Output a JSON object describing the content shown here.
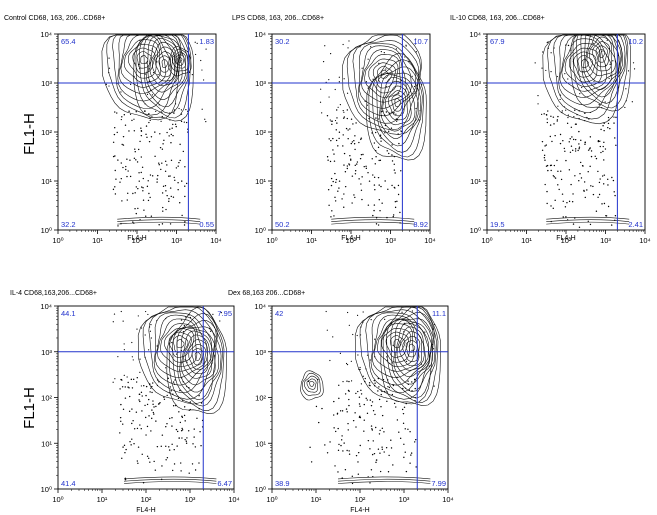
{
  "figure": {
    "ylabel": "FL1-H"
  },
  "chart_data": [
    {
      "type": "scatter",
      "title": "Control CD68, 163, 206...CD68+",
      "xlabel": "FL4-H",
      "ylabel": "FL1-H",
      "xscale": "log",
      "yscale": "log",
      "xlim": [
        1,
        10000
      ],
      "ylim": [
        1,
        10000
      ],
      "x_ticks": [
        "10⁰",
        "10¹",
        "10²",
        "10³",
        "10⁴"
      ],
      "y_ticks": [
        "10⁰",
        "10¹",
        "10²",
        "10³",
        "10⁴"
      ],
      "gate": {
        "x": 2000,
        "y": 1000
      },
      "quadrants": {
        "upper_left": "65.4",
        "upper_right": "1.83",
        "lower_left": "32.2",
        "lower_right": "0.55"
      },
      "density_peaks": [
        [
          150,
          3000
        ],
        [
          500,
          2500
        ],
        [
          1200,
          3000
        ]
      ]
    },
    {
      "type": "scatter",
      "title": "LPS CD68, 163, 206...CD68+",
      "xlabel": "FL4-H",
      "ylabel": "",
      "xscale": "log",
      "yscale": "log",
      "xlim": [
        1,
        10000
      ],
      "ylim": [
        1,
        10000
      ],
      "x_ticks": [
        "10⁰",
        "10¹",
        "10²",
        "10³",
        "10⁴"
      ],
      "y_ticks": [
        "10⁰",
        "10¹",
        "10²",
        "10³",
        "10⁴"
      ],
      "gate": {
        "x": 2000,
        "y": 1000
      },
      "quadrants": {
        "upper_left": "30.2",
        "upper_right": "10.7",
        "lower_left": "50.2",
        "lower_right": "8.92"
      },
      "density_peaks": [
        [
          700,
          1500
        ],
        [
          1500,
          400
        ]
      ]
    },
    {
      "type": "scatter",
      "title": "IL-10 CD68, 163, 206...CD68+",
      "xlabel": "FL4-H",
      "ylabel": "",
      "xscale": "log",
      "yscale": "log",
      "xlim": [
        1,
        10000
      ],
      "ylim": [
        1,
        10000
      ],
      "x_ticks": [
        "10⁰",
        "10¹",
        "10²",
        "10³",
        "10⁴"
      ],
      "y_ticks": [
        "10⁰",
        "10¹",
        "10²",
        "10³",
        "10⁴"
      ],
      "gate": {
        "x": 2000,
        "y": 1000
      },
      "quadrants": {
        "upper_left": "67.9",
        "upper_right": "10.2",
        "lower_left": "19.5",
        "lower_right": "2.41"
      },
      "density_peaks": [
        [
          300,
          2500
        ],
        [
          800,
          4000
        ]
      ]
    },
    {
      "type": "scatter",
      "title": "IL-4 CD68,163,206...CD68+",
      "xlabel": "FL4-H",
      "ylabel": "FL1-H",
      "xscale": "log",
      "yscale": "log",
      "xlim": [
        1,
        10000
      ],
      "ylim": [
        1,
        10000
      ],
      "x_ticks": [
        "10⁰",
        "10¹",
        "10²",
        "10³",
        "10⁴"
      ],
      "y_ticks": [
        "10⁰",
        "10¹",
        "10²",
        "10³",
        "10⁴"
      ],
      "gate": {
        "x": 2000,
        "y": 1000
      },
      "quadrants": {
        "upper_left": "44.1",
        "upper_right": "7.95",
        "lower_left": "41.4",
        "lower_right": "6.47"
      },
      "density_peaks": [
        [
          600,
          1500
        ],
        [
          1500,
          800
        ]
      ]
    },
    {
      "type": "scatter",
      "title": "Dex 68,163 206...CD68+",
      "xlabel": "FL4-H",
      "ylabel": "",
      "xscale": "log",
      "yscale": "log",
      "xlim": [
        1,
        10000
      ],
      "ylim": [
        1,
        10000
      ],
      "x_ticks": [
        "10⁰",
        "10¹",
        "10²",
        "10³",
        "10⁴"
      ],
      "y_ticks": [
        "10⁰",
        "10¹",
        "10²",
        "10³",
        "10⁴"
      ],
      "gate": {
        "x": 2000,
        "y": 1000
      },
      "quadrants": {
        "upper_left": "42",
        "upper_right": "11.1",
        "lower_left": "38.9",
        "lower_right": "7.99"
      },
      "density_peaks": [
        [
          700,
          1500
        ],
        [
          1500,
          1200
        ],
        [
          8,
          200
        ]
      ]
    }
  ],
  "colors": {
    "gate_line": "#2233cc",
    "quadrant_text": "#2233cc",
    "contour": "#111111"
  }
}
